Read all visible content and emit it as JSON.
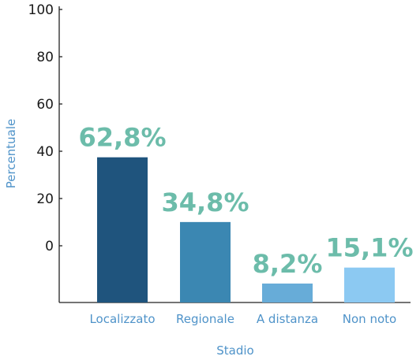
{
  "chart_data": {
    "type": "bar",
    "xlabel": "Stadio",
    "ylabel": "Percentuale",
    "categories": [
      "Localizzato",
      "Regionale",
      "A distanza",
      "Non noto"
    ],
    "values": [
      62.8,
      34.8,
      8.2,
      15.1
    ],
    "value_labels": [
      "62,8%",
      "34,8%",
      "8,2%",
      "15,1%"
    ],
    "y_tick_labels": [
      "100",
      "80",
      "60",
      "40",
      "20",
      "0"
    ],
    "ylim": [
      0,
      100
    ],
    "grid": false,
    "legend": "none",
    "bar_colors": [
      "#1f547d",
      "#3b87b2",
      "#67acd8",
      "#8cc9f2"
    ],
    "value_label_color": "#6cbcaa",
    "axis_text_color": "#4f93c9"
  }
}
